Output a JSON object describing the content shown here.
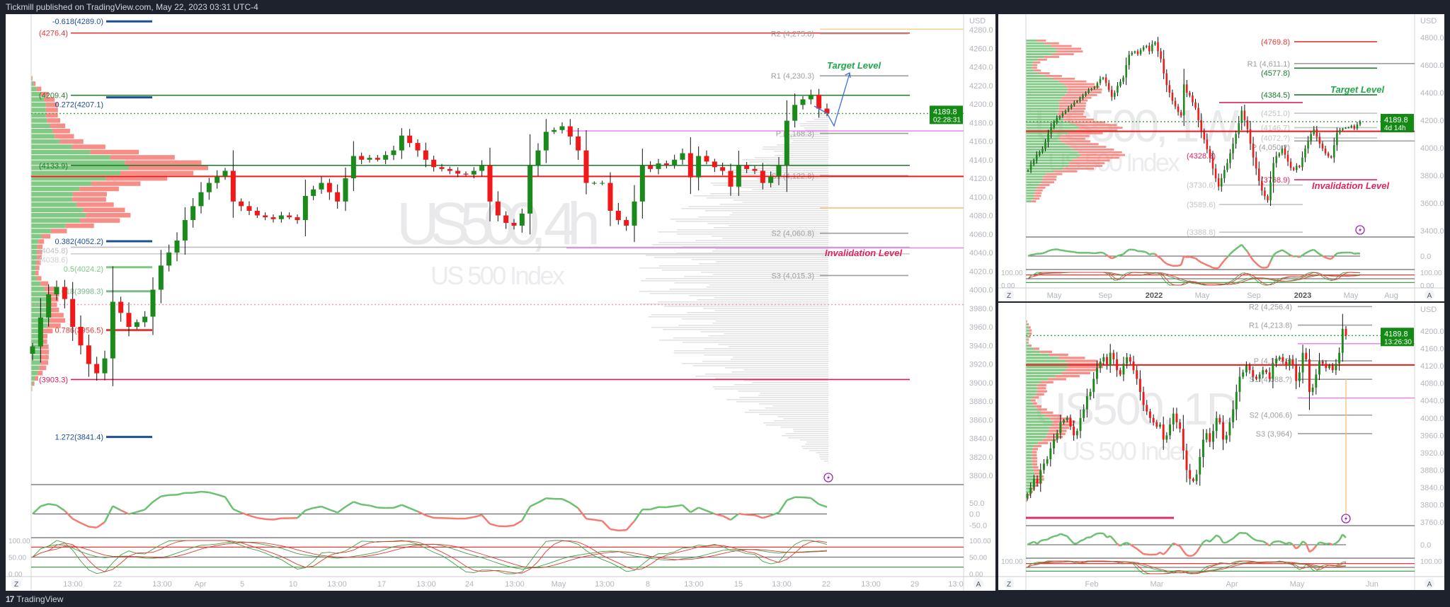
{
  "header": {
    "publish_text": "Tickmill published on TradingView.com, May 22, 2023 03:31 UTC-4"
  },
  "footer": {
    "logo_text": "TradingView",
    "logo_glyph": "17"
  },
  "colors": {
    "up": "#1a8a1a",
    "down": "#f01818",
    "background": "#ffffff",
    "frame": "#1e222d",
    "tag": "#138a13"
  },
  "controls": {
    "left_button": "Z",
    "right_button": "A"
  },
  "panels": {
    "main": {
      "symbol_watermark": "US500, 4h",
      "name_watermark": "US 500 Index",
      "currency": "USD",
      "price_tag": {
        "price": "4189.8",
        "countdown": "02:28:31"
      },
      "price_ticks": [
        "4280.0",
        "4260.0",
        "4240.0",
        "4220.0",
        "4200.0",
        "4180.0",
        "4160.0",
        "4140.0",
        "4120.0",
        "4100.0",
        "4080.0",
        "4060.0",
        "4040.0",
        "4020.0",
        "4000.0",
        "3980.0",
        "3960.0",
        "3940.0",
        "3920.0",
        "3900.0",
        "3880.0",
        "3860.0",
        "3840.0",
        "3820.0",
        "3800.0"
      ],
      "osc1_ticks": [
        "50.0",
        "0.0",
        "-50.0"
      ],
      "osc2_ticks": [
        "100.00",
        "50.00",
        "0.00"
      ],
      "time_ticks": [
        "13:00",
        "22",
        "13:00",
        "Apr",
        "5",
        "10",
        "13:00",
        "17",
        "13:00",
        "24",
        "13:00",
        "May",
        "13:00",
        "8",
        "13:00",
        "15",
        "13:00",
        "22",
        "13:00",
        "29",
        "13:0"
      ],
      "target_label": "Target Level",
      "invalidation_label": "Invalidation Level",
      "levels": [
        {
          "label": "-0.618(4289.0)",
          "price": 4289.0,
          "color": "#1d4f96",
          "kind": "fib"
        },
        {
          "label": "(4276.4)",
          "price": 4276.4,
          "color": "#e53935",
          "kind": "long"
        },
        {
          "label": "R2 (4,275.8)",
          "price": 4275.8,
          "color": "#9e9e9e",
          "kind": "pivot"
        },
        {
          "label": "R1 (4,230.3)",
          "price": 4230.3,
          "color": "#9e9e9e",
          "kind": "pivot"
        },
        {
          "label": "(4209.4)",
          "price": 4209.4,
          "color": "#2e7d32",
          "kind": "long"
        },
        {
          "label": "0.272(4207.1)",
          "price": 4207.1,
          "color": "#1d4f96",
          "kind": "fib"
        },
        {
          "label": "P (4,168.3)",
          "price": 4168.3,
          "color": "#9e9e9e",
          "kind": "pivot"
        },
        {
          "label": "(4133.9)",
          "price": 4133.9,
          "color": "#1b7a2e",
          "kind": "long"
        },
        {
          "label": "S1 (4,122.8)",
          "price": 4122.8,
          "color": "#9e9e9e",
          "kind": "pivot"
        },
        {
          "label": "S2 (4,060.8)",
          "price": 4060.8,
          "color": "#9e9e9e",
          "kind": "pivot"
        },
        {
          "label": "0.382(4052.2)",
          "price": 4052.2,
          "color": "#1d4f96",
          "kind": "fib"
        },
        {
          "label": "(4045.8)",
          "price": 4045.8,
          "color": "#bdbdbd",
          "kind": "long"
        },
        {
          "label": "(4038.6)",
          "price": 4038.6,
          "color": "#cfcfcf",
          "kind": "long"
        },
        {
          "label": "0.5(4024.2)",
          "price": 4024.2,
          "color": "#81c784",
          "kind": "fib"
        },
        {
          "label": "S3 (4,015.3)",
          "price": 4015.3,
          "color": "#9e9e9e",
          "kind": "pivot"
        },
        {
          "label": "0.618(3998.3)",
          "price": 3998.3,
          "color": "#7cb98a",
          "kind": "fib"
        },
        {
          "label": "0.786(3956.5)",
          "price": 3956.5,
          "color": "#e53935",
          "kind": "fib"
        },
        {
          "label": "(3903.3)",
          "price": 3903.3,
          "color": "#d81b60",
          "kind": "long"
        },
        {
          "label": "1.272(3841.4)",
          "price": 3841.4,
          "color": "#1d4f96",
          "kind": "fib"
        }
      ],
      "lines": [
        {
          "price": 4122.0,
          "color": "#f01818",
          "kind": "full"
        },
        {
          "price": 4171.0,
          "color": "#e879f0",
          "kind": "right"
        },
        {
          "price": 4045.0,
          "color": "#e879f0",
          "kind": "right"
        },
        {
          "price": 4088.0,
          "color": "#f5b971",
          "kind": "tail"
        },
        {
          "price": 4280.6,
          "color": "#f5d08a",
          "kind": "tail"
        },
        {
          "price": 4189.8,
          "color": "#43a047",
          "kind": "dotted"
        },
        {
          "price": 3984.0,
          "color": "#f3a0b0",
          "kind": "dotted"
        }
      ],
      "closes": [
        3939,
        3970,
        3995,
        4003,
        3990,
        3960,
        3940,
        3920,
        3910,
        3926,
        3987,
        3975,
        3960,
        3965,
        3971,
        4000,
        4026,
        4040,
        4053,
        4075,
        4090,
        4105,
        4115,
        4122,
        4128,
        4095,
        4090,
        4085,
        4080,
        4078,
        4076,
        4080,
        4078,
        4075,
        4101,
        4108,
        4115,
        4105,
        4095,
        4120,
        4144,
        4140,
        4142,
        4140,
        4145,
        4150,
        4166,
        4158,
        4150,
        4140,
        4132,
        4130,
        4128,
        4125,
        4124,
        4128,
        4134,
        4095,
        4080,
        4072,
        4069,
        4082,
        4134,
        4150,
        4170,
        4172,
        4176,
        4165,
        4150,
        4115,
        4115,
        4115,
        4085,
        4075,
        4069,
        4095,
        4134,
        4130,
        4136,
        4134,
        4140,
        4147,
        4121,
        4144,
        4138,
        4132,
        4128,
        4111,
        4134,
        4130,
        4128,
        4115,
        4122,
        4134,
        4182,
        4199,
        4205,
        4210,
        4195,
        4189.8
      ]
    },
    "weekly": {
      "symbol_watermark": "US500, 1W",
      "name_watermark": "US 500 Index",
      "currency": "USD",
      "price_tag": {
        "price": "4189.8",
        "countdown": "4d 14h"
      },
      "price_ticks": [
        "4800.0",
        "4600.0",
        "4400.0",
        "4200.0",
        "4000.0",
        "3800.0",
        "3600.0",
        "3400.0"
      ],
      "osc1_ticks": [
        "0.0"
      ],
      "osc2_ticks": [
        "100.00",
        "0.00"
      ],
      "time_ticks": [
        "May",
        "Sep",
        "2022",
        "May",
        "Sep",
        "2023",
        "May",
        "Aug"
      ],
      "target_label": "Target Level",
      "invalidation_label": "Invalidation Level",
      "levels": [
        {
          "label": "(4769.8)",
          "price": 4769.8,
          "color": "#e53935",
          "kind": "right"
        },
        {
          "label": "R1 (4,611.1)",
          "price": 4611.1,
          "color": "#9e9e9e",
          "kind": "pivot"
        },
        {
          "label": "(4577.8)",
          "price": 4577.8,
          "color": "#1b7a2e",
          "kind": "right"
        },
        {
          "label": "(4384.5)",
          "price": 4384.5,
          "color": "#1b7a2e",
          "kind": "right"
        },
        {
          "label": "(4328.3)",
          "price": 4328.3,
          "color": "#e0245e",
          "kind": "left"
        },
        {
          "label": "(4251.0)",
          "price": 4251.0,
          "color": "#c4c4c4",
          "kind": "right"
        },
        {
          "label": "(4146.7)",
          "price": 4146.7,
          "color": "#c4c4c4",
          "kind": "right"
        },
        {
          "label": "(4072.?)",
          "price": 4072.0,
          "color": "#c4c4c4",
          "kind": "right"
        },
        {
          "label": "P (4,050.?)",
          "price": 4050.0,
          "color": "#9e9e9e",
          "kind": "pivot"
        },
        {
          "label": "(3768.9)",
          "price": 3768.9,
          "color": "#e0245e",
          "kind": "right"
        },
        {
          "label": "(3730.6)",
          "price": 3730.6,
          "color": "#c4c4c4",
          "kind": "left"
        },
        {
          "label": "(3589.6)",
          "price": 3589.6,
          "color": "#c4c4c4",
          "kind": "left"
        },
        {
          "label": "(3388.8)",
          "price": 3388.8,
          "color": "#c4c4c4",
          "kind": "left"
        }
      ],
      "lines": [
        {
          "price": 4120.0,
          "color": "#f01818",
          "kind": "full"
        },
        {
          "price": 4189.8,
          "color": "#43a047",
          "kind": "dotted"
        }
      ],
      "closes": [
        3840,
        3880,
        3910,
        3950,
        3970,
        3995,
        4040,
        4100,
        4150,
        4185,
        4215,
        4230,
        4250,
        4270,
        4290,
        4310,
        4330,
        4340,
        4360,
        4380,
        4400,
        4420,
        4430,
        4440,
        4470,
        4500,
        4510,
        4470,
        4420,
        4370,
        4400,
        4450,
        4480,
        4510,
        4600,
        4675,
        4690,
        4700,
        4680,
        4710,
        4730,
        4740,
        4700,
        4750,
        4765,
        4700,
        4645,
        4540,
        4455,
        4400,
        4340,
        4300,
        4260,
        4235,
        4460,
        4400,
        4380,
        4330,
        4290,
        4200,
        4120,
        4060,
        3990,
        3930,
        3850,
        3780,
        3720,
        3780,
        3840,
        3890,
        3960,
        4030,
        4100,
        4180,
        4270,
        4200,
        4135,
        4030,
        3930,
        3850,
        3760,
        3690,
        3650,
        3620,
        3750,
        3890,
        3940,
        3960,
        3995,
        3950,
        3900,
        3855,
        3840,
        3870,
        3860,
        3930,
        3995,
        4050,
        4100,
        4135,
        4080,
        4030,
        3995,
        3960,
        3940,
        3930,
        4020,
        4110,
        4130,
        4140,
        4145,
        4150,
        4160,
        4140,
        4170,
        4189.8
      ]
    },
    "daily": {
      "symbol_watermark": "US500, 1D",
      "name_watermark": "US 500 Index",
      "currency": "USD",
      "price_tag": {
        "price": "4189.8",
        "countdown": "13:26:30"
      },
      "price_ticks": [
        "4200.0",
        "4160.0",
        "4120.0",
        "4080.0",
        "4040.0",
        "4000.0",
        "3960.0",
        "3920.0",
        "3880.0",
        "3840.0",
        "3800.0",
        "3760.0"
      ],
      "osc1_ticks": [
        "0.0"
      ],
      "osc2_ticks": [
        "100.00"
      ],
      "time_ticks": [
        "Feb",
        "Mar",
        "Apr",
        "May",
        "Jun"
      ],
      "levels": [
        {
          "label": "R2 (4,256.4)",
          "price": 4256.4,
          "color": "#9e9e9e",
          "kind": "pivot"
        },
        {
          "label": "R1 (4,213.8)",
          "price": 4213.8,
          "color": "#9e9e9e",
          "kind": "pivot"
        },
        {
          "label": "P (4,1??.5)",
          "price": 4131.5,
          "color": "#9e9e9e",
          "kind": "pivot"
        },
        {
          "label": "S1 (4,088.?)",
          "price": 4088.9,
          "color": "#9e9e9e",
          "kind": "pivot"
        },
        {
          "label": "S2 (4,006.6)",
          "price": 4006.6,
          "color": "#9e9e9e",
          "kind": "pivot"
        },
        {
          "label": "S3 (3,964)",
          "price": 3964.0,
          "color": "#9e9e9e",
          "kind": "pivot"
        }
      ],
      "lines": [
        {
          "price": 4122.0,
          "color": "#f01818",
          "kind": "full"
        },
        {
          "price": 4171.0,
          "color": "#e879f0",
          "kind": "right"
        },
        {
          "price": 4046.0,
          "color": "#e879f0",
          "kind": "right"
        },
        {
          "price": 3770.0,
          "color": "#d6336c",
          "kind": "leftthick"
        },
        {
          "price": 4189.8,
          "color": "#43a047",
          "kind": "dotted"
        }
      ],
      "closes": [
        3825,
        3840,
        3860,
        3850,
        3880,
        3895,
        3905,
        3930,
        3950,
        3965,
        3990,
        3995,
        4000,
        3980,
        3960,
        3970,
        4000,
        4020,
        4050,
        4060,
        4090,
        4115,
        4130,
        4140,
        4120,
        4150,
        4135,
        4110,
        4100,
        4125,
        4140,
        4130,
        4110,
        4090,
        4060,
        4030,
        4015,
        4000,
        3990,
        3980,
        3985,
        3950,
        3960,
        3985,
        4010,
        3990,
        3975,
        3925,
        3880,
        3860,
        3855,
        3870,
        3910,
        3950,
        3965,
        3945,
        3970,
        4000,
        3990,
        3950,
        3960,
        3990,
        4020,
        4060,
        4095,
        4105,
        4120,
        4110,
        4095,
        4090,
        4100,
        4110,
        4105,
        4090,
        4125,
        4135,
        4140,
        4130,
        4120,
        4135,
        4120,
        4085,
        4105,
        4150,
        4135,
        4060,
        4070,
        4100,
        4130,
        4125,
        4115,
        4120,
        4110,
        4125,
        4150,
        4205,
        4189.8
      ]
    }
  }
}
